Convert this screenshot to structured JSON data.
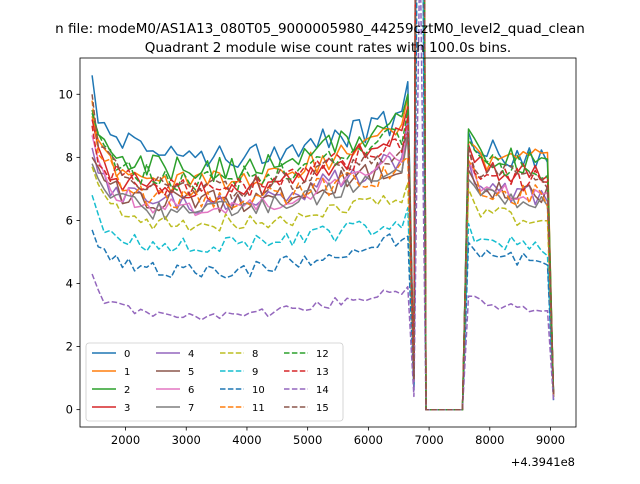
{
  "chart_data": {
    "type": "line",
    "title": "Quadrant 2 module wise count rates with 100.0s bins.",
    "suptitle": "n file: modeM0/AS1A13_080T05_9000005980_44259cztM0_level2_quad_clean",
    "xlabel": "",
    "ylabel": "",
    "x_offset_label": "+4.3941e8",
    "xlim": [
      1250,
      9420
    ],
    "ylim": [
      -0.55,
      11.15
    ],
    "xticks": [
      2000,
      3000,
      4000,
      5000,
      6000,
      7000,
      8000,
      9000
    ],
    "yticks": [
      0,
      2,
      4,
      6,
      8,
      10
    ],
    "grid": false,
    "legend": {
      "placement": "lower-left",
      "columns": 4
    },
    "x": {
      "start": 1450,
      "step": 100,
      "count": 77
    },
    "gap": {
      "start": 6900,
      "end": 7550
    },
    "series": [
      {
        "name": "0",
        "color": "#1f77b4",
        "style": "solid",
        "first": 10.6,
        "level": 8.1,
        "end_level": 9.2,
        "peak": 10.4,
        "post_first": 8.8,
        "post_level": 8.3,
        "post_end": 7.8,
        "final": 0.5
      },
      {
        "name": "1",
        "color": "#ff7f0e",
        "style": "solid",
        "first": 9.3,
        "level": 7.2,
        "end_level": 8.9,
        "peak": 9.9,
        "post_first": 8.5,
        "post_level": 7.9,
        "post_end": 7.9,
        "final": 0.4
      },
      {
        "name": "2",
        "color": "#2ca02c",
        "style": "solid",
        "first": 9.5,
        "level": 7.6,
        "end_level": 9.1,
        "peak": 10.0,
        "post_first": 8.9,
        "post_level": 8.1,
        "post_end": 7.7,
        "final": 0.5
      },
      {
        "name": "3",
        "color": "#d62728",
        "style": "solid",
        "first": 9.2,
        "level": 6.9,
        "end_level": 8.7,
        "peak": 9.6,
        "post_first": 8.4,
        "post_level": 7.7,
        "post_end": 7.3,
        "final": 0.5
      },
      {
        "name": "4",
        "color": "#9467bd",
        "style": "solid",
        "first": 8.3,
        "level": 6.5,
        "end_level": 8.0,
        "peak": 9.2,
        "post_first": 7.9,
        "post_level": 7.2,
        "post_end": 6.6,
        "final": 0.4
      },
      {
        "name": "5",
        "color": "#8c564b",
        "style": "solid",
        "first": 8.0,
        "level": 6.6,
        "end_level": 7.8,
        "peak": 8.9,
        "post_first": 7.6,
        "post_level": 7.0,
        "post_end": 6.8,
        "final": 0.4
      },
      {
        "name": "6",
        "color": "#e377c2",
        "style": "solid",
        "first": 8.7,
        "level": 6.4,
        "end_level": 8.0,
        "peak": 9.0,
        "post_first": 7.9,
        "post_level": 7.0,
        "post_end": 6.9,
        "final": 0.4
      },
      {
        "name": "7",
        "color": "#7f7f7f",
        "style": "solid",
        "first": 7.8,
        "level": 6.3,
        "end_level": 7.6,
        "peak": 8.7,
        "post_first": 7.3,
        "post_level": 6.7,
        "post_end": 6.6,
        "final": 0.4
      },
      {
        "name": "8",
        "color": "#bcbd22",
        "style": "dashed",
        "first": 7.7,
        "level": 5.9,
        "end_level": 6.8,
        "peak": 7.2,
        "post_first": 7.0,
        "post_level": 6.3,
        "post_end": 5.9,
        "final": 0.4
      },
      {
        "name": "9",
        "color": "#17becf",
        "style": "dashed",
        "first": 6.8,
        "level": 5.2,
        "end_level": 6.0,
        "peak": 6.4,
        "post_first": 5.9,
        "post_level": 5.5,
        "post_end": 5.0,
        "final": 0.4
      },
      {
        "name": "10",
        "color": "#1f77b4",
        "style": "dashed",
        "first": 5.7,
        "level": 4.4,
        "end_level": 5.5,
        "peak": 5.5,
        "post_first": 5.3,
        "post_level": 4.9,
        "post_end": 4.7,
        "final": 0.3
      },
      {
        "name": "11",
        "color": "#ff7f0e",
        "style": "dashed",
        "first": 9.8,
        "level": 6.6,
        "end_level": 7.6,
        "peak": 8.0,
        "post_first": 7.9,
        "post_level": 7.0,
        "post_end": 6.7,
        "final": 0.4
      },
      {
        "name": "12",
        "color": "#2ca02c",
        "style": "dashed",
        "first": 9.4,
        "level": 7.3,
        "end_level": 8.8,
        "peak": 9.5,
        "post_first": 8.6,
        "post_level": 7.8,
        "post_end": 7.6,
        "final": 0.5
      },
      {
        "name": "13",
        "color": "#d62728",
        "style": "dashed",
        "first": 9.0,
        "level": 7.0,
        "end_level": 8.5,
        "peak": 9.3,
        "post_first": 8.3,
        "post_level": 7.5,
        "post_end": 7.2,
        "final": 0.5
      },
      {
        "name": "14",
        "color": "#9467bd",
        "style": "dashed",
        "first": 4.3,
        "level": 3.0,
        "end_level": 3.8,
        "peak": 3.9,
        "post_first": 3.6,
        "post_level": 3.4,
        "post_end": 3.2,
        "final": 0.3
      },
      {
        "name": "15",
        "color": "#8c564b",
        "style": "dashed",
        "first": 10.0,
        "level": 7.0,
        "end_level": 8.3,
        "peak": 8.8,
        "post_first": 8.3,
        "post_level": 7.5,
        "post_end": 7.3,
        "final": 0.5
      }
    ]
  }
}
